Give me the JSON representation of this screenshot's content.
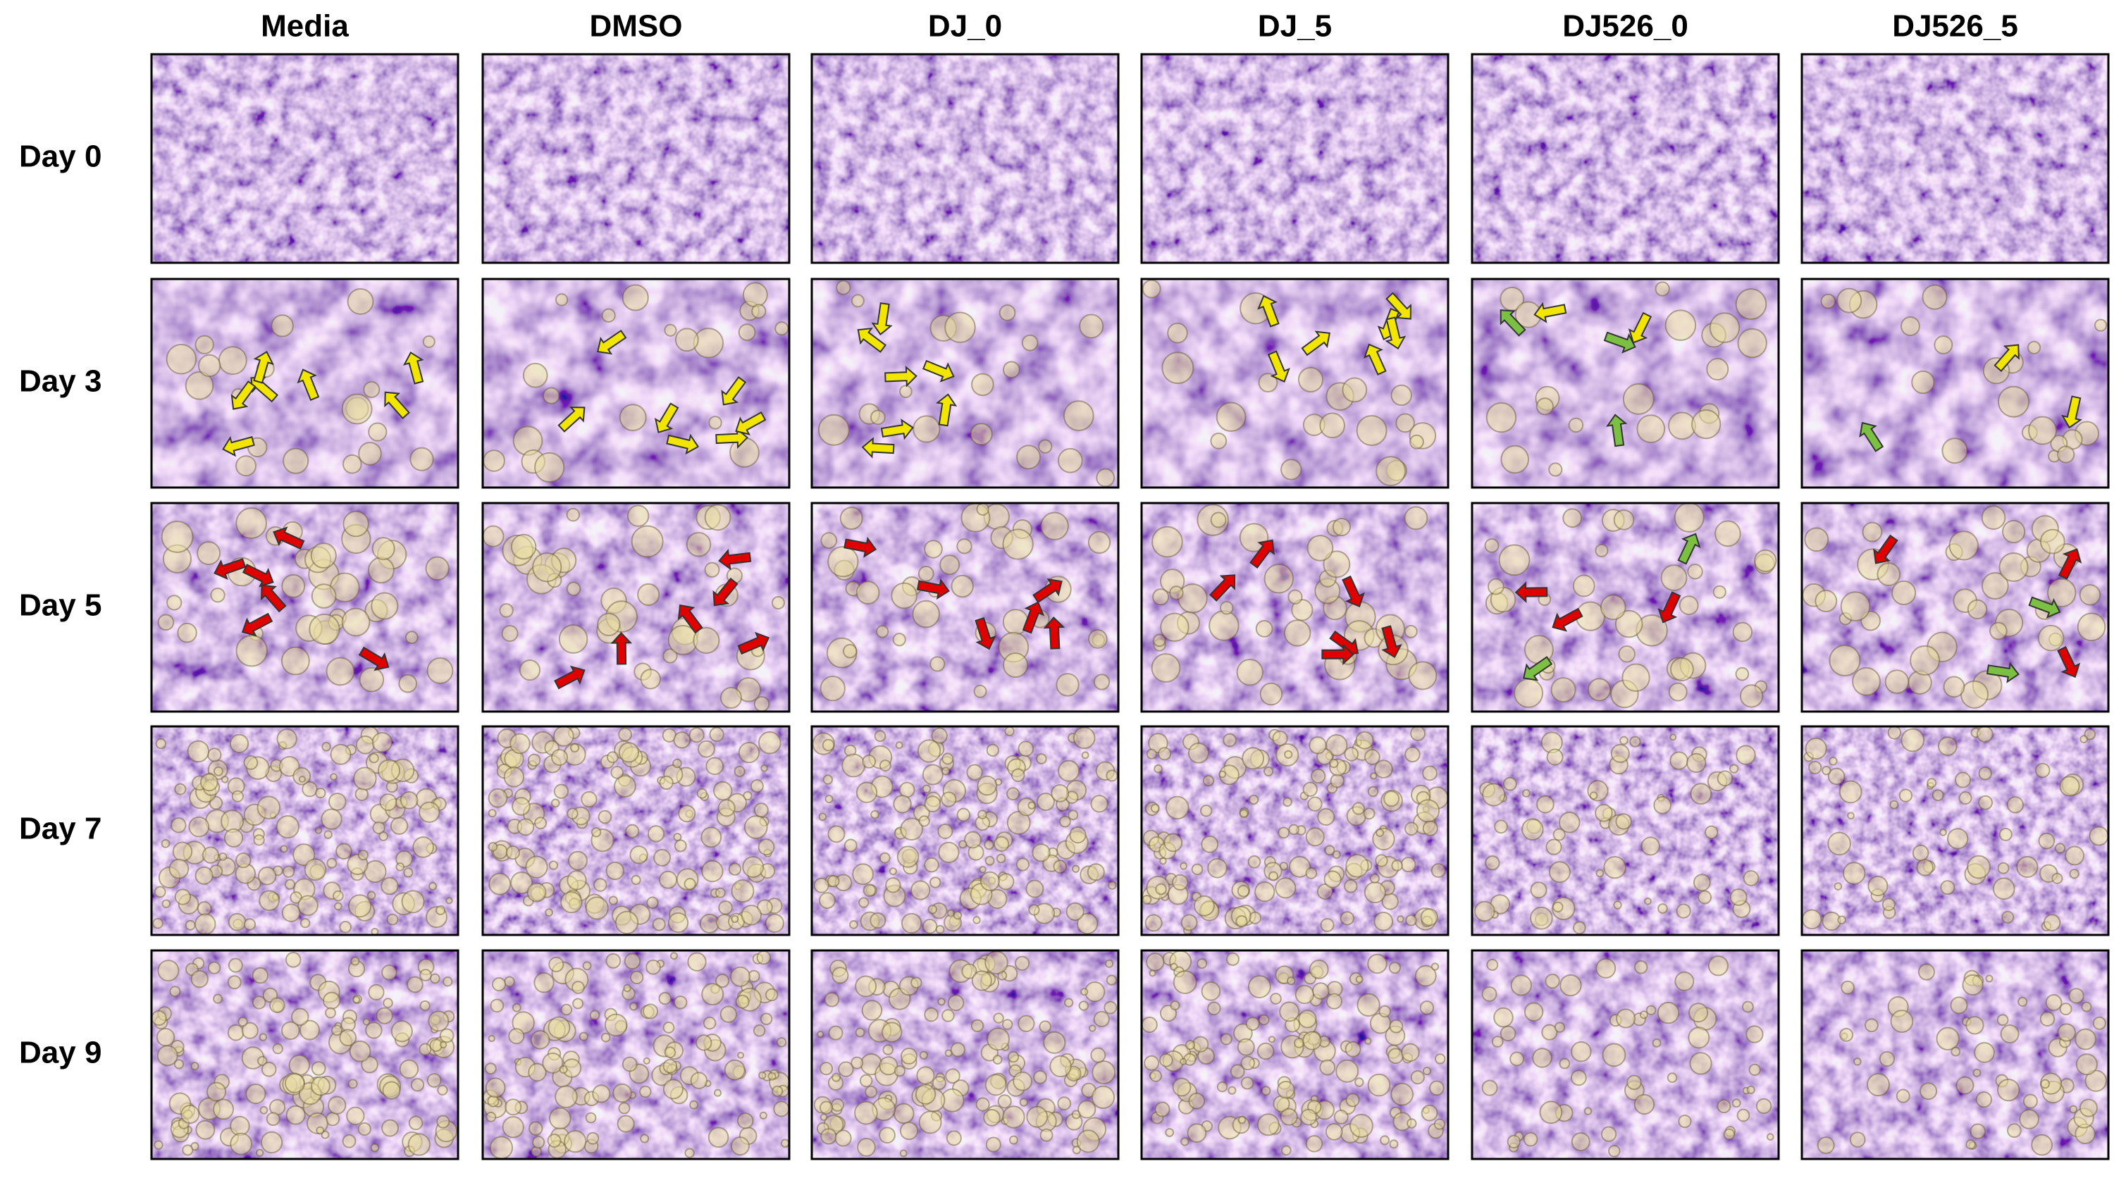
{
  "columns": [
    "Media",
    "DMSO",
    "DJ_0",
    "DJ_5",
    "DJ526_0",
    "DJ526_5"
  ],
  "rows": [
    "Day 0",
    "Day 3",
    "Day 5",
    "Day 7",
    "Day 9"
  ]
}
